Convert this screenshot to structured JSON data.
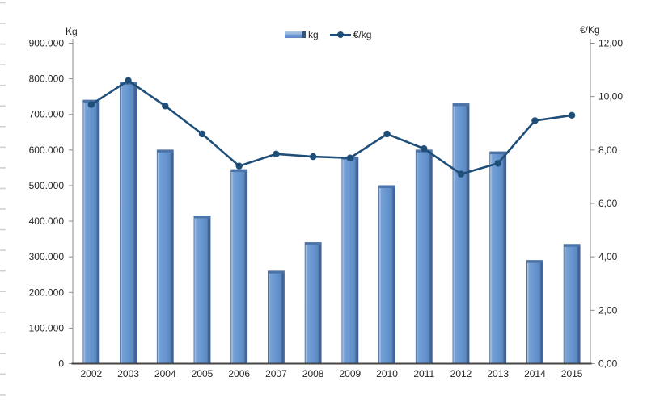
{
  "chart_data": {
    "type": "combo-bar-line",
    "title": "",
    "categories": [
      "2002",
      "2003",
      "2004",
      "2005",
      "2006",
      "2007",
      "2008",
      "2009",
      "2010",
      "2011",
      "2012",
      "2013",
      "2014",
      "2015"
    ],
    "series": [
      {
        "name": "kg",
        "type": "bar",
        "axis": "left",
        "values": [
          740000,
          790000,
          600000,
          415000,
          545000,
          260000,
          340000,
          580000,
          500000,
          600000,
          730000,
          595000,
          290000,
          335000
        ]
      },
      {
        "name": "€/kg",
        "type": "line",
        "axis": "right",
        "values": [
          9.7,
          10.6,
          9.65,
          8.6,
          7.4,
          7.85,
          7.75,
          7.7,
          8.6,
          8.05,
          7.1,
          7.5,
          9.1,
          9.3
        ]
      }
    ],
    "left_axis": {
      "title": "Kg",
      "min": 0,
      "max": 900000,
      "step": 100000,
      "tick_labels": [
        "0",
        "100.000",
        "200.000",
        "300.000",
        "400.000",
        "500.000",
        "600.000",
        "700.000",
        "800.000",
        "900.000"
      ]
    },
    "right_axis": {
      "title": "€/Kg",
      "min": 0,
      "max": 12,
      "step": 2,
      "tick_labels": [
        "0,00",
        "2,00",
        "4,00",
        "6,00",
        "8,00",
        "10,00",
        "12,00"
      ]
    },
    "legend": {
      "position": "top",
      "entries": [
        {
          "label": "kg",
          "swatch": "bar"
        },
        {
          "label": "€/kg",
          "swatch": "line-marker"
        }
      ]
    },
    "grid": false
  },
  "colors": {
    "bar_fill": "#6494ce",
    "bar_fill_light": "#b3cce8",
    "bar_fill_dark": "#3e6194",
    "bar_border": "#3a5e96",
    "bar_cap": "#4c74a8",
    "line": "#1f4e79",
    "axis_line": "#8c8c8c",
    "baseline": "#454545",
    "text": "#262626",
    "background": "#ffffff",
    "edge_marks": "#cdd1d5"
  }
}
